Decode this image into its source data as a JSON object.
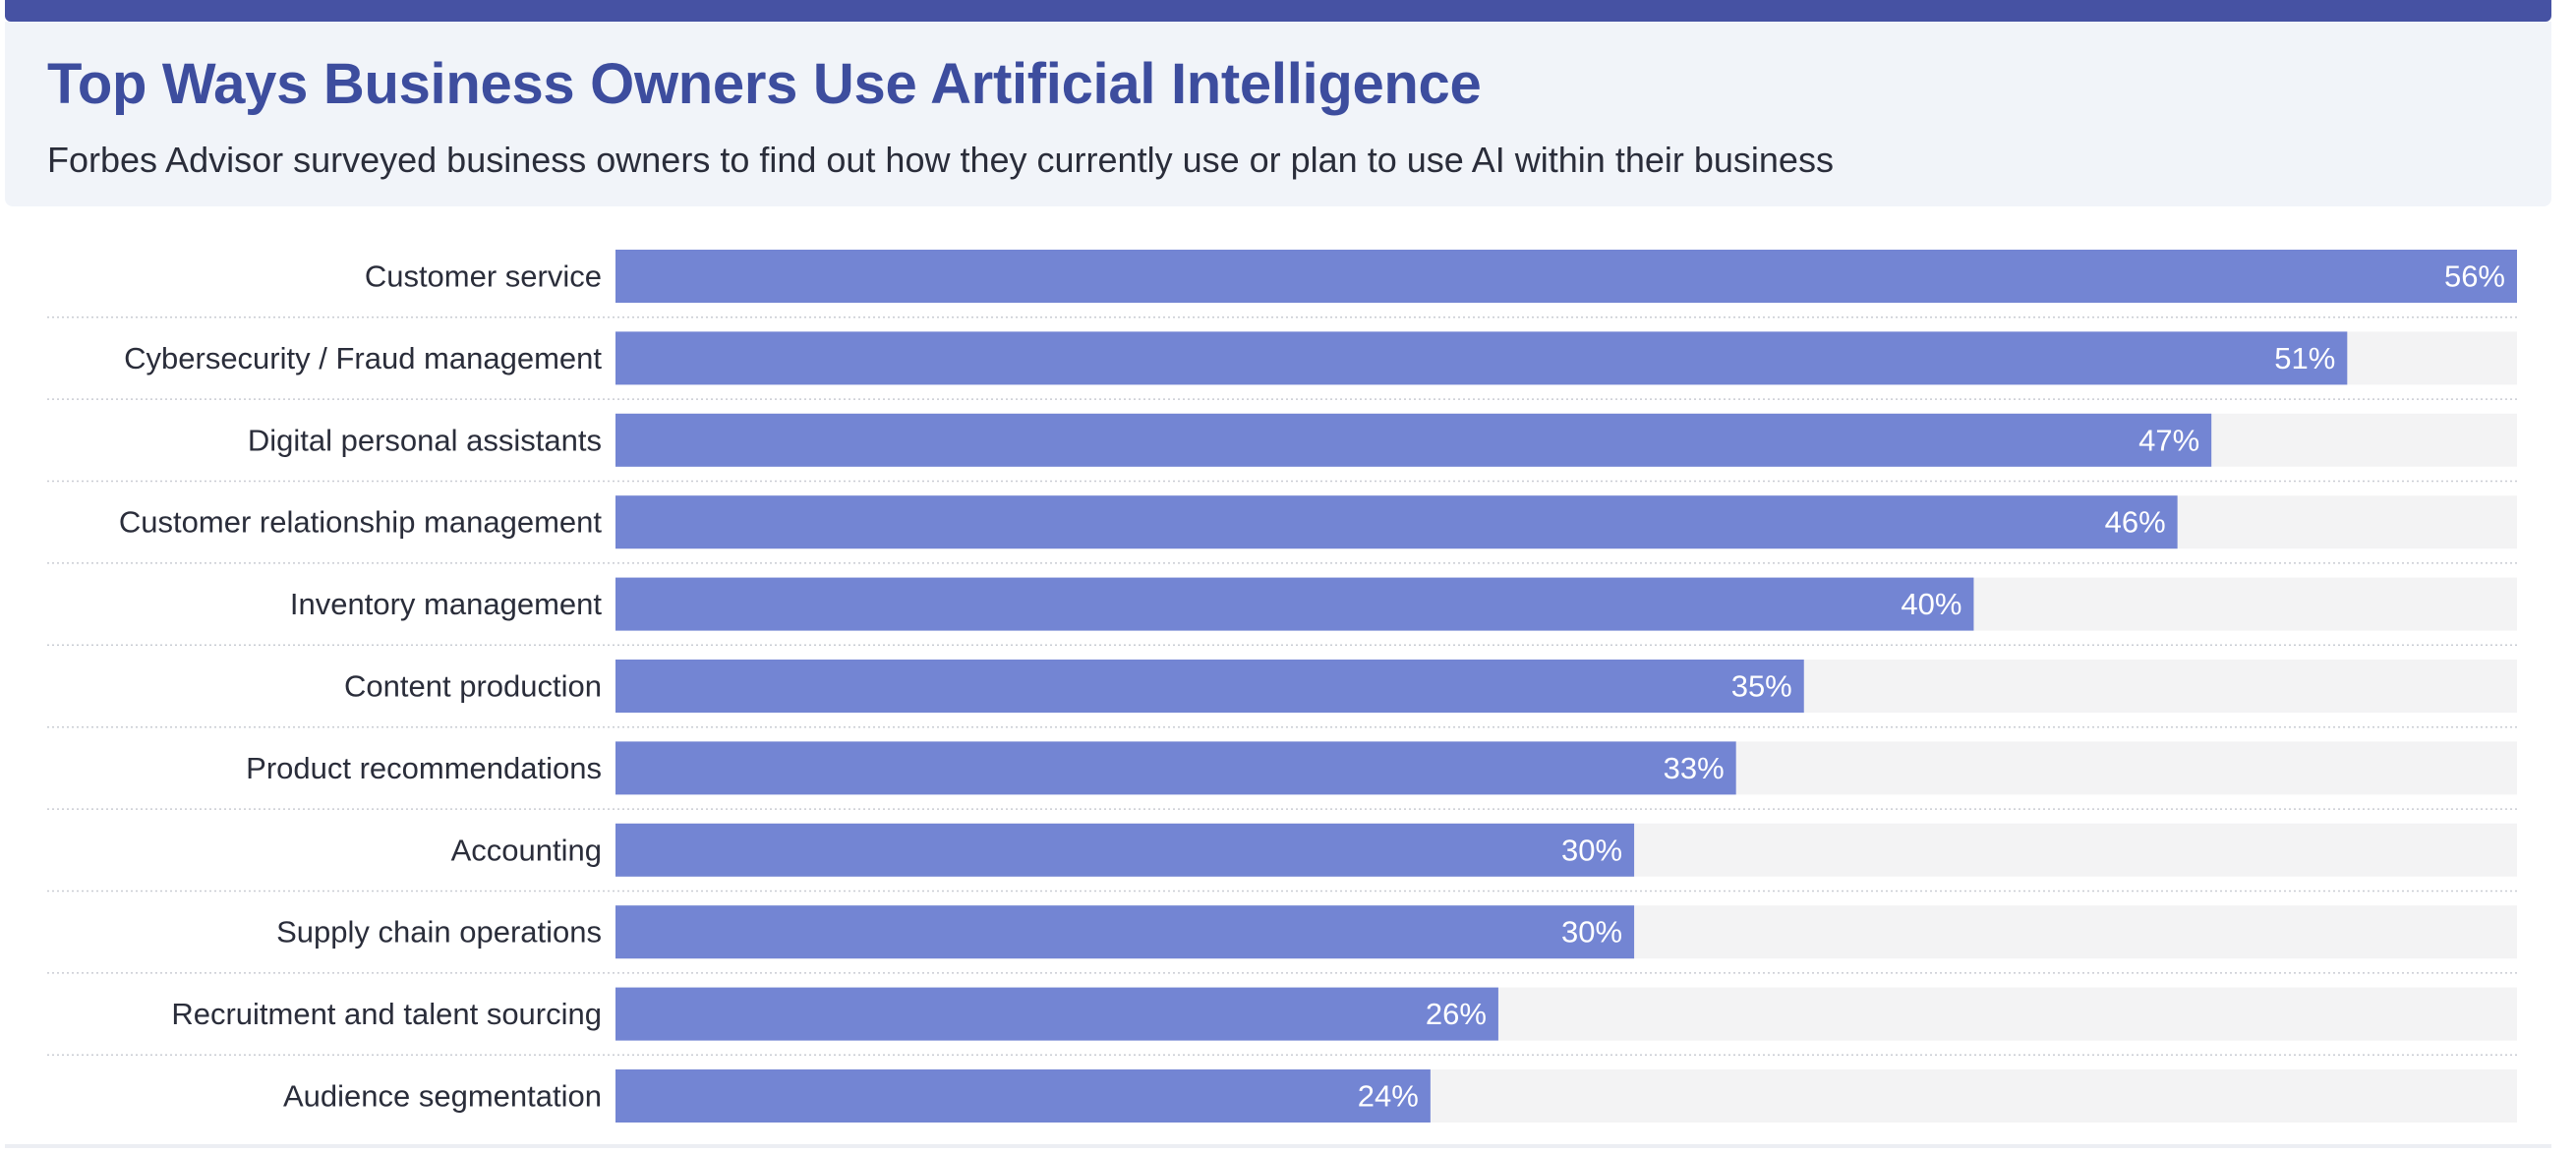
{
  "header": {
    "title": "Top Ways Business Owners Use Artificial Intelligence",
    "subtitle": "Forbes Advisor surveyed business owners to find out how they currently use or plan to use AI within their business"
  },
  "colors": {
    "accent": "#4652a3",
    "bar": "#7385d3",
    "track": "#f3f3f4",
    "title": "#3d4d9e"
  },
  "chart_data": {
    "type": "bar",
    "orientation": "horizontal",
    "categories": [
      "Customer service",
      "Cybersecurity / Fraud management",
      "Digital personal assistants",
      "Customer relationship management",
      "Inventory management",
      "Content production",
      "Product recommendations",
      "Accounting",
      "Supply chain operations",
      "Recruitment and talent sourcing",
      "Audience segmentation"
    ],
    "values": [
      56,
      51,
      47,
      46,
      40,
      35,
      33,
      30,
      30,
      26,
      24
    ],
    "value_labels": [
      "56%",
      "51%",
      "47%",
      "46%",
      "40%",
      "35%",
      "33%",
      "30%",
      "30%",
      "26%",
      "24%"
    ],
    "xlim": [
      0,
      56
    ],
    "grid": false,
    "legend": "none"
  }
}
